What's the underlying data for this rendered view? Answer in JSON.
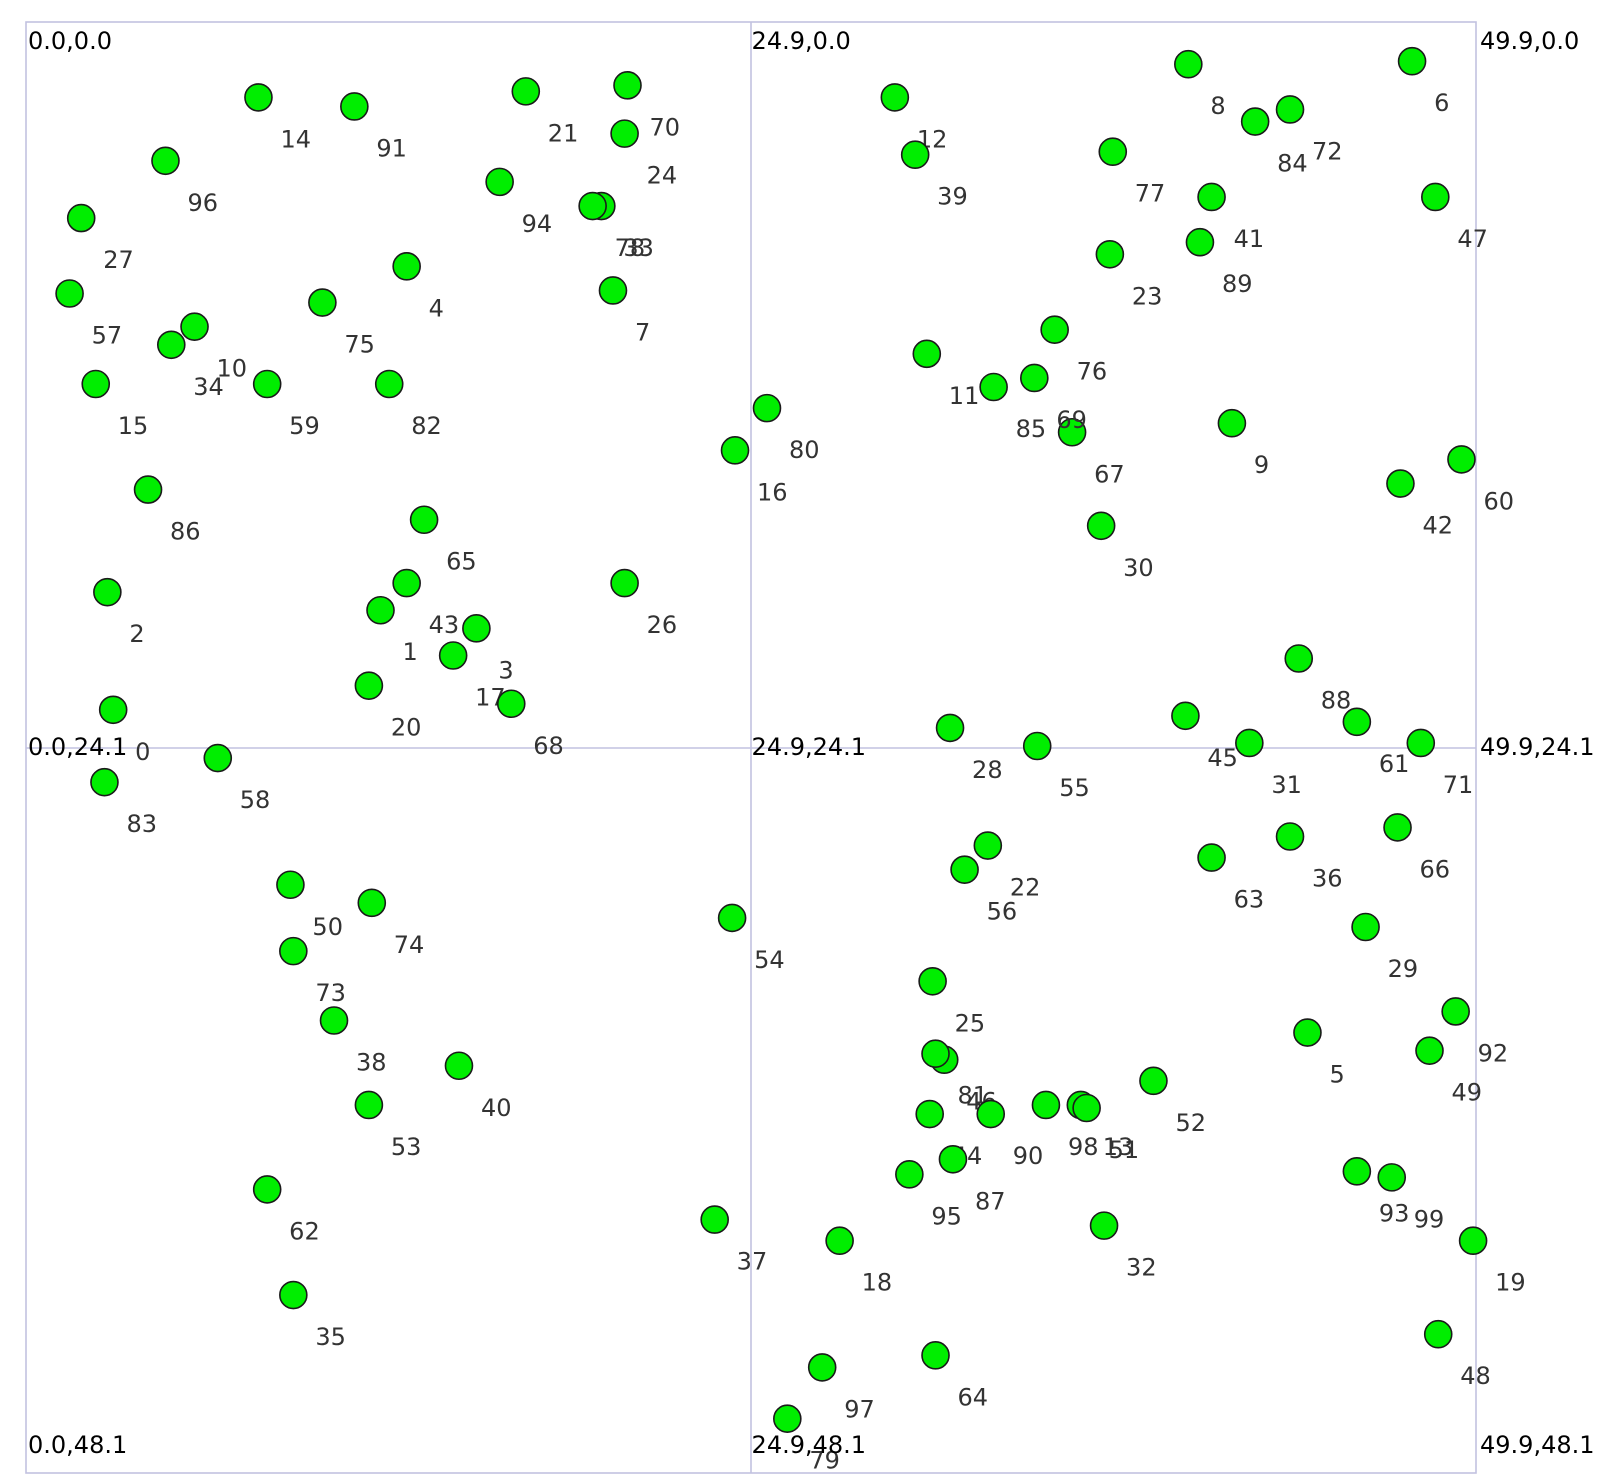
{
  "chart_data": {
    "type": "scatter",
    "title": "",
    "xlabel": "",
    "ylabel": "",
    "xlim": [
      0.0,
      49.9
    ],
    "ylim": [
      0.0,
      48.1
    ],
    "y_axis_inverted": true,
    "grid": "quadrant dividers at x=24.9 and y=24.1",
    "legend": "none",
    "marker_color": "#00ee00",
    "marker_edge_color": "#1a1a1a",
    "corner_labels": [
      {
        "id": "tl",
        "text": "0.0,0.0",
        "x": 0.0,
        "y": 0.0
      },
      {
        "id": "tm",
        "text": "24.9,0.0",
        "x": 24.9,
        "y": 0.0
      },
      {
        "id": "tr",
        "text": "49.9,0.0",
        "x": 49.9,
        "y": 0.0
      },
      {
        "id": "ml",
        "text": "0.0,24.1",
        "x": 0.0,
        "y": 24.1
      },
      {
        "id": "mm",
        "text": "24.9,24.1",
        "x": 24.9,
        "y": 24.1
      },
      {
        "id": "mr",
        "text": "49.9,24.1",
        "x": 49.9,
        "y": 24.1
      },
      {
        "id": "bl",
        "text": "0.0,48.1",
        "x": 0.0,
        "y": 48.1
      },
      {
        "id": "bm",
        "text": "24.9,48.1",
        "x": 24.9,
        "y": 48.1
      },
      {
        "id": "br",
        "text": "49.9,48.1",
        "x": 49.9,
        "y": 48.1
      }
    ],
    "points": [
      {
        "label": "0",
        "x": 3.0,
        "y": 22.8
      },
      {
        "label": "1",
        "x": 12.2,
        "y": 19.5
      },
      {
        "label": "2",
        "x": 2.8,
        "y": 18.9
      },
      {
        "label": "3",
        "x": 15.5,
        "y": 20.1
      },
      {
        "label": "4",
        "x": 13.1,
        "y": 8.1
      },
      {
        "label": "5",
        "x": 44.1,
        "y": 33.5
      },
      {
        "label": "6",
        "x": 47.7,
        "y": 1.3
      },
      {
        "label": "7",
        "x": 20.2,
        "y": 8.9
      },
      {
        "label": "8",
        "x": 40.0,
        "y": 1.4
      },
      {
        "label": "9",
        "x": 41.5,
        "y": 13.3
      },
      {
        "label": "10",
        "x": 5.8,
        "y": 10.1
      },
      {
        "label": "11",
        "x": 31.0,
        "y": 11.0
      },
      {
        "label": "12",
        "x": 29.9,
        "y": 2.5
      },
      {
        "label": "13",
        "x": 36.3,
        "y": 35.9
      },
      {
        "label": "14",
        "x": 8.0,
        "y": 2.5
      },
      {
        "label": "15",
        "x": 2.4,
        "y": 12.0
      },
      {
        "label": "16",
        "x": 24.4,
        "y": 14.2
      },
      {
        "label": "17",
        "x": 14.7,
        "y": 21.0
      },
      {
        "label": "18",
        "x": 28.0,
        "y": 40.4
      },
      {
        "label": "19",
        "x": 49.8,
        "y": 40.4
      },
      {
        "label": "20",
        "x": 11.8,
        "y": 22.0
      },
      {
        "label": "21",
        "x": 17.2,
        "y": 2.3
      },
      {
        "label": "22",
        "x": 33.1,
        "y": 27.3
      },
      {
        "label": "23",
        "x": 37.3,
        "y": 7.7
      },
      {
        "label": "24",
        "x": 20.6,
        "y": 3.7
      },
      {
        "label": "25",
        "x": 31.2,
        "y": 31.8
      },
      {
        "label": "26",
        "x": 20.6,
        "y": 18.6
      },
      {
        "label": "27",
        "x": 1.9,
        "y": 6.5
      },
      {
        "label": "28",
        "x": 31.8,
        "y": 23.4
      },
      {
        "label": "29",
        "x": 46.1,
        "y": 30.0
      },
      {
        "label": "30",
        "x": 37.0,
        "y": 16.7
      },
      {
        "label": "31",
        "x": 42.1,
        "y": 23.9
      },
      {
        "label": "32",
        "x": 37.1,
        "y": 39.9
      },
      {
        "label": "33",
        "x": 19.8,
        "y": 6.1
      },
      {
        "label": "34",
        "x": 5.0,
        "y": 10.7
      },
      {
        "label": "35",
        "x": 9.2,
        "y": 42.2
      },
      {
        "label": "36",
        "x": 43.5,
        "y": 27.0
      },
      {
        "label": "37",
        "x": 23.7,
        "y": 39.7
      },
      {
        "label": "38",
        "x": 10.6,
        "y": 33.1
      },
      {
        "label": "39",
        "x": 30.6,
        "y": 4.4
      },
      {
        "label": "40",
        "x": 14.9,
        "y": 34.6
      },
      {
        "label": "41",
        "x": 40.8,
        "y": 5.8
      },
      {
        "label": "42",
        "x": 47.3,
        "y": 15.3
      },
      {
        "label": "43",
        "x": 13.1,
        "y": 18.6
      },
      {
        "label": "44",
        "x": 31.1,
        "y": 36.2
      },
      {
        "label": "45",
        "x": 39.9,
        "y": 23.0
      },
      {
        "label": "46",
        "x": 31.6,
        "y": 34.4
      },
      {
        "label": "47",
        "x": 48.5,
        "y": 5.8
      },
      {
        "label": "48",
        "x": 48.6,
        "y": 43.5
      },
      {
        "label": "49",
        "x": 48.3,
        "y": 34.1
      },
      {
        "label": "50",
        "x": 9.1,
        "y": 28.6
      },
      {
        "label": "51",
        "x": 36.5,
        "y": 36.0
      },
      {
        "label": "52",
        "x": 38.8,
        "y": 35.1
      },
      {
        "label": "53",
        "x": 11.8,
        "y": 35.9
      },
      {
        "label": "54",
        "x": 24.3,
        "y": 29.7
      },
      {
        "label": "55",
        "x": 34.8,
        "y": 24.0
      },
      {
        "label": "56",
        "x": 32.3,
        "y": 28.1
      },
      {
        "label": "57",
        "x": 1.5,
        "y": 9.0
      },
      {
        "label": "58",
        "x": 6.6,
        "y": 24.4
      },
      {
        "label": "59",
        "x": 8.3,
        "y": 12.0
      },
      {
        "label": "60",
        "x": 49.4,
        "y": 14.5
      },
      {
        "label": "61",
        "x": 45.8,
        "y": 23.2
      },
      {
        "label": "62",
        "x": 8.3,
        "y": 38.7
      },
      {
        "label": "63",
        "x": 40.8,
        "y": 27.7
      },
      {
        "label": "64",
        "x": 31.3,
        "y": 44.2
      },
      {
        "label": "65",
        "x": 13.7,
        "y": 16.5
      },
      {
        "label": "66",
        "x": 47.2,
        "y": 26.7
      },
      {
        "label": "67",
        "x": 36.0,
        "y": 13.6
      },
      {
        "label": "68",
        "x": 16.7,
        "y": 22.6
      },
      {
        "label": "69",
        "x": 34.7,
        "y": 11.8
      },
      {
        "label": "70",
        "x": 20.7,
        "y": 2.1
      },
      {
        "label": "71",
        "x": 48.0,
        "y": 23.9
      },
      {
        "label": "72",
        "x": 43.5,
        "y": 2.9
      },
      {
        "label": "73",
        "x": 9.2,
        "y": 30.8
      },
      {
        "label": "74",
        "x": 11.9,
        "y": 29.2
      },
      {
        "label": "75",
        "x": 10.2,
        "y": 9.3
      },
      {
        "label": "76",
        "x": 35.4,
        "y": 10.2
      },
      {
        "label": "77",
        "x": 37.4,
        "y": 4.3
      },
      {
        "label": "78",
        "x": 19.5,
        "y": 6.1
      },
      {
        "label": "79",
        "x": 26.2,
        "y": 46.3
      },
      {
        "label": "80",
        "x": 25.5,
        "y": 12.8
      },
      {
        "label": "81",
        "x": 31.3,
        "y": 34.2
      },
      {
        "label": "82",
        "x": 12.5,
        "y": 12.0
      },
      {
        "label": "83",
        "x": 2.7,
        "y": 25.2
      },
      {
        "label": "84",
        "x": 42.3,
        "y": 3.3
      },
      {
        "label": "85",
        "x": 33.3,
        "y": 12.1
      },
      {
        "label": "86",
        "x": 4.2,
        "y": 15.5
      },
      {
        "label": "87",
        "x": 31.9,
        "y": 37.7
      },
      {
        "label": "88",
        "x": 43.8,
        "y": 21.1
      },
      {
        "label": "89",
        "x": 40.4,
        "y": 7.3
      },
      {
        "label": "90",
        "x": 33.2,
        "y": 36.2
      },
      {
        "label": "91",
        "x": 11.3,
        "y": 2.8
      },
      {
        "label": "92",
        "x": 49.2,
        "y": 32.8
      },
      {
        "label": "93",
        "x": 45.8,
        "y": 38.1
      },
      {
        "label": "94",
        "x": 16.3,
        "y": 5.3
      },
      {
        "label": "95",
        "x": 30.4,
        "y": 38.2
      },
      {
        "label": "96",
        "x": 4.8,
        "y": 4.6
      },
      {
        "label": "97",
        "x": 27.4,
        "y": 44.6
      },
      {
        "label": "98",
        "x": 35.1,
        "y": 35.9
      },
      {
        "label": "99",
        "x": 47.0,
        "y": 38.3
      }
    ]
  }
}
